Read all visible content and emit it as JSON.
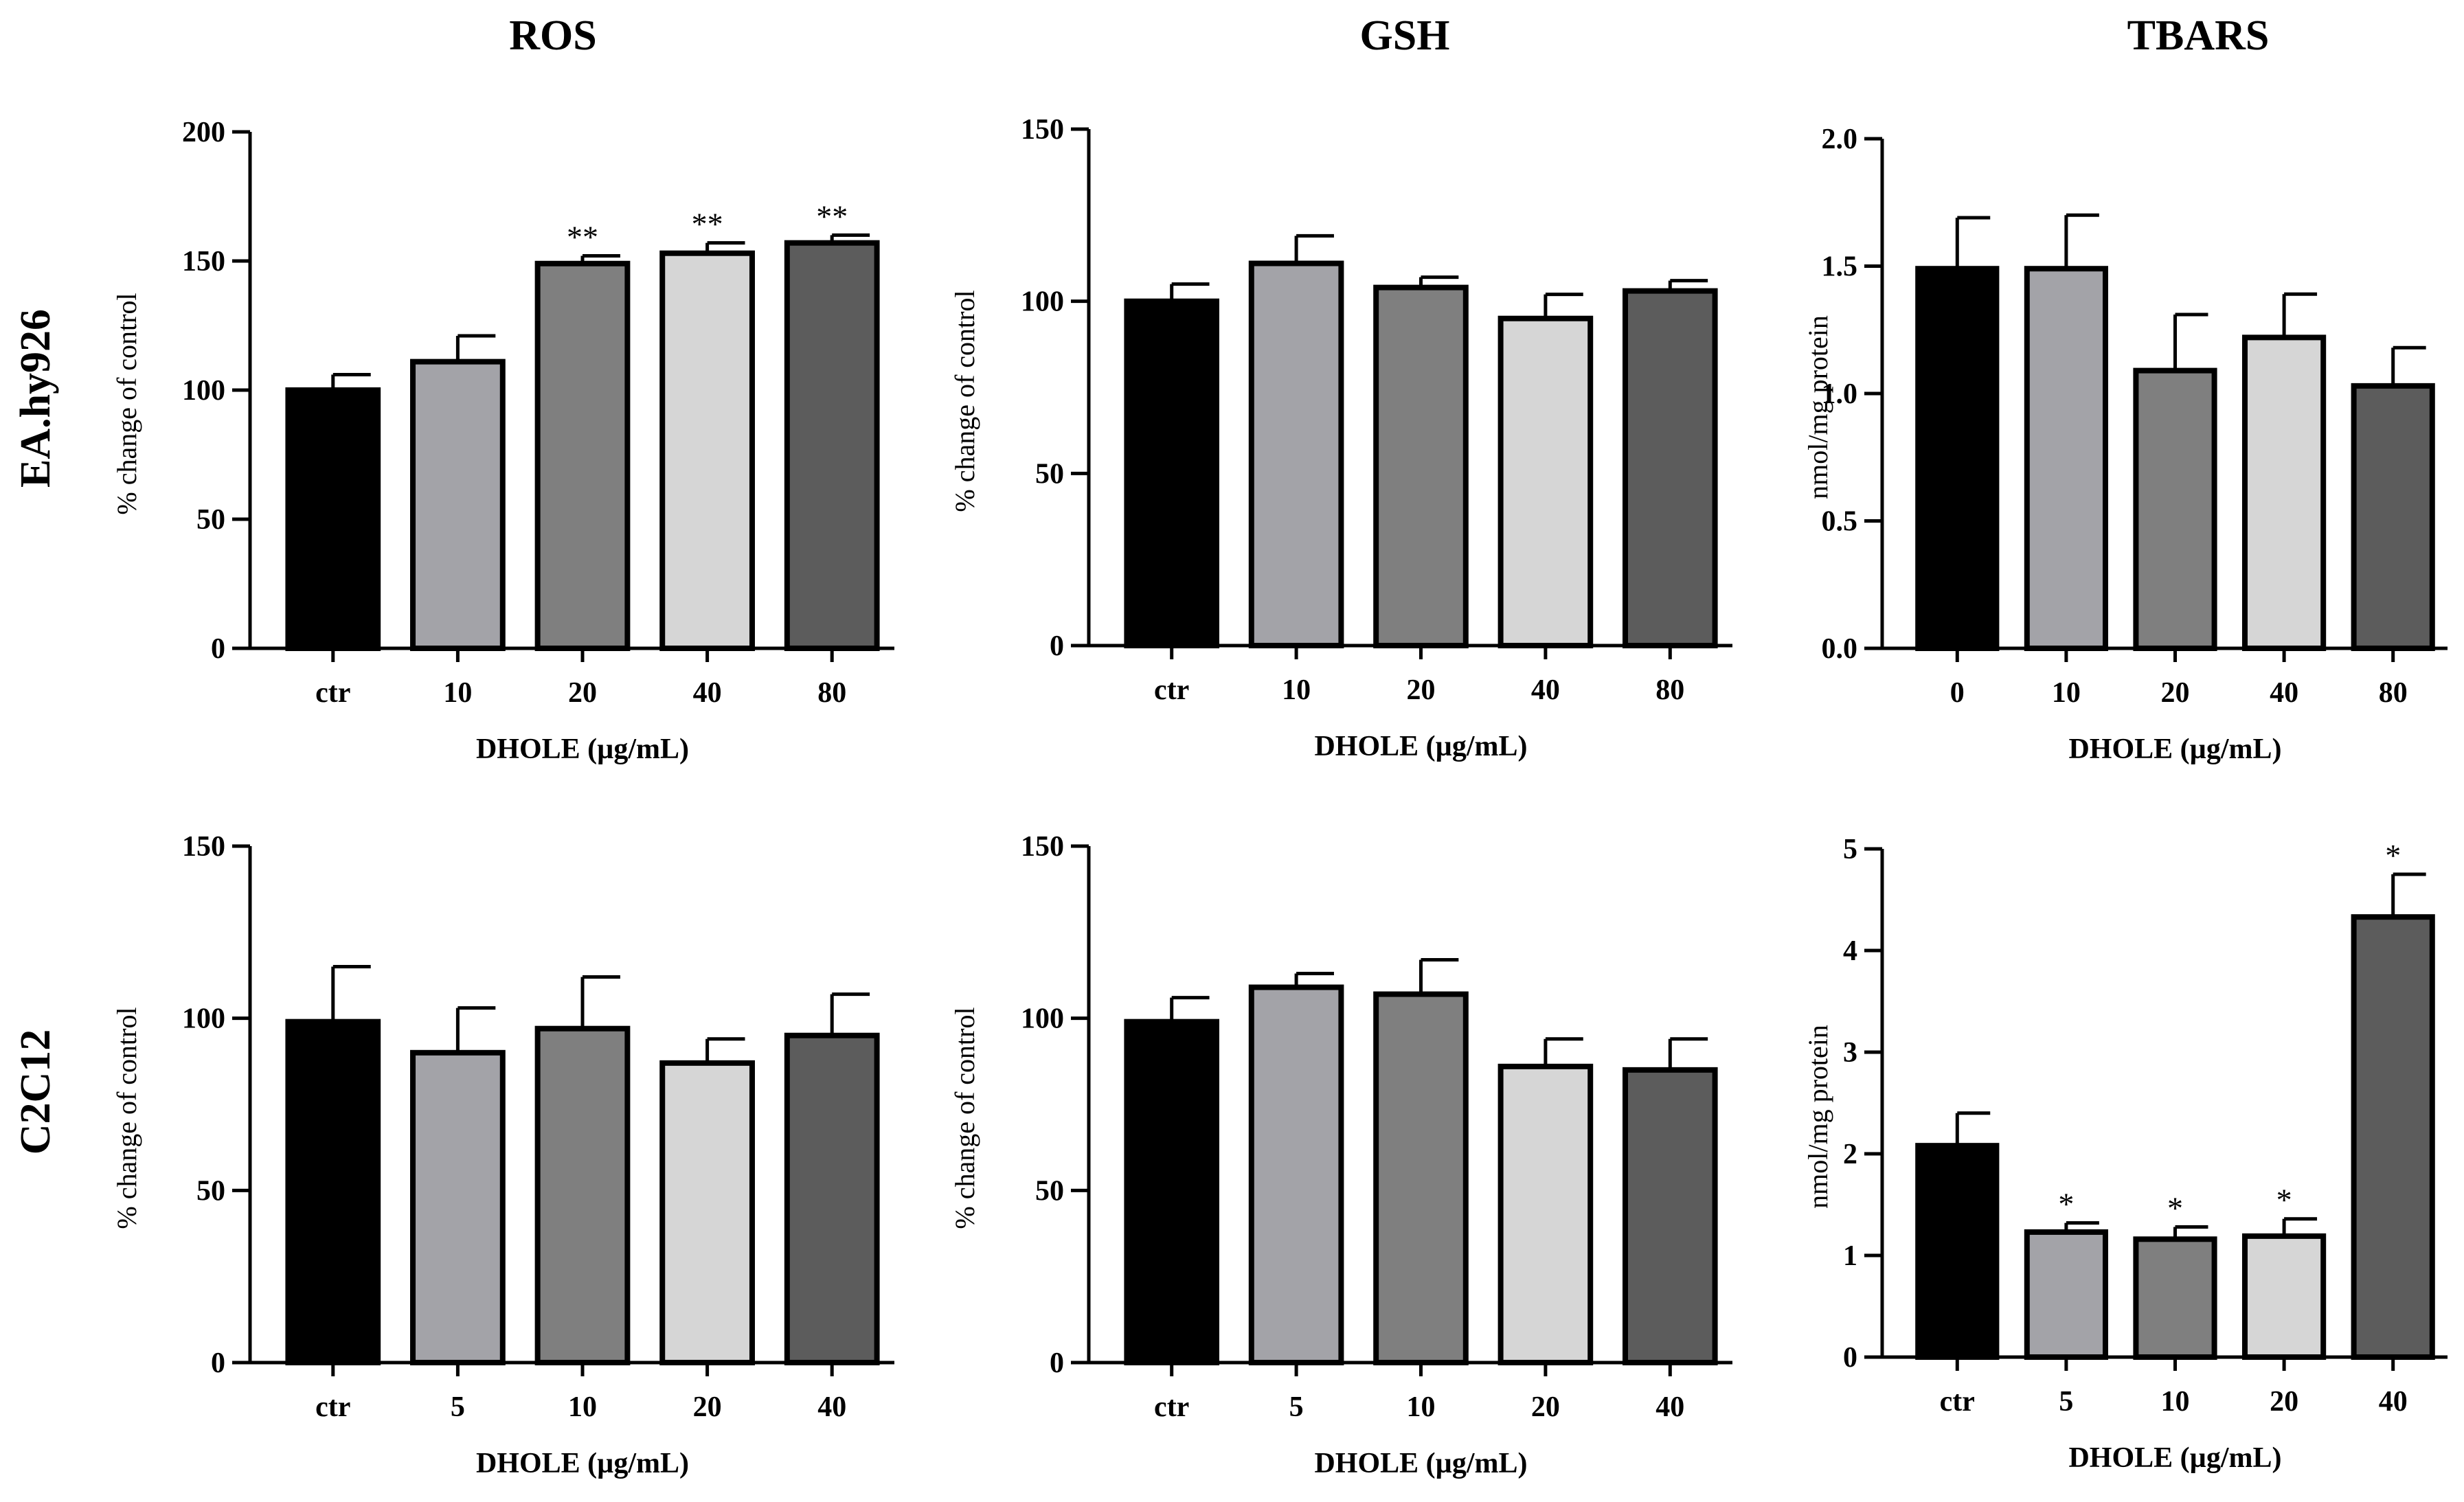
{
  "column_titles": [
    "ROS",
    "GSH",
    "TBARS"
  ],
  "row_labels": [
    "EA.hy926",
    "C2C12"
  ],
  "bar_colors": [
    "#000000",
    "#a3a3a8",
    "#7f7f7f",
    "#d6d6d6",
    "#5c5c5c"
  ],
  "chart_data": [
    {
      "type": "bar",
      "panel": "EA.hy926-ROS",
      "categories": [
        "ctr",
        "10",
        "20",
        "40",
        "80"
      ],
      "values": [
        100,
        111,
        149,
        153,
        157
      ],
      "errors": [
        6,
        10,
        3,
        4,
        3
      ],
      "annotations": [
        "",
        "",
        "**",
        "**",
        "**"
      ],
      "ylabel": "% change of control",
      "xlabel": "DHOLE (µg/mL)",
      "ylim": [
        0,
        200
      ],
      "yticks": [
        "0",
        "50",
        "100",
        "150",
        "200"
      ]
    },
    {
      "type": "bar",
      "panel": "EA.hy926-GSH",
      "categories": [
        "ctr",
        "10",
        "20",
        "40",
        "80"
      ],
      "values": [
        100,
        111,
        104,
        95,
        103
      ],
      "errors": [
        5,
        8,
        3,
        7,
        3
      ],
      "annotations": [
        "",
        "",
        "",
        "",
        ""
      ],
      "ylabel": "% change of control",
      "xlabel": "DHOLE (µg/mL)",
      "ylim": [
        0,
        150
      ],
      "yticks": [
        "0",
        "50",
        "100",
        "150"
      ]
    },
    {
      "type": "bar",
      "panel": "EA.hy926-TBARS",
      "categories": [
        "0",
        "10",
        "20",
        "40",
        "80"
      ],
      "values": [
        1.49,
        1.49,
        1.09,
        1.22,
        1.03
      ],
      "errors": [
        0.2,
        0.21,
        0.22,
        0.17,
        0.15
      ],
      "annotations": [
        "",
        "",
        "",
        "",
        ""
      ],
      "ylabel": "nmol/mg protein",
      "xlabel": "DHOLE (µg/mL)",
      "ylim": [
        0,
        2
      ],
      "yticks": [
        "0.0",
        "0.5",
        "1.0",
        "1.5",
        "2.0"
      ]
    },
    {
      "type": "bar",
      "panel": "C2C12-ROS",
      "categories": [
        "ctr",
        "5",
        "10",
        "20",
        "40"
      ],
      "values": [
        99,
        90,
        97,
        87,
        95
      ],
      "errors": [
        16,
        13,
        15,
        7,
        12
      ],
      "annotations": [
        "",
        "",
        "",
        "",
        ""
      ],
      "ylabel": "% change of control",
      "xlabel": "DHOLE (µg/mL)",
      "ylim": [
        0,
        150
      ],
      "yticks": [
        "0",
        "50",
        "100",
        "150"
      ]
    },
    {
      "type": "bar",
      "panel": "C2C12-GSH",
      "categories": [
        "ctr",
        "5",
        "10",
        "20",
        "40"
      ],
      "values": [
        99,
        109,
        107,
        86,
        85
      ],
      "errors": [
        7,
        4,
        10,
        8,
        9
      ],
      "annotations": [
        "",
        "",
        "",
        "",
        ""
      ],
      "ylabel": "% change of control",
      "xlabel": "DHOLE (µg/mL)",
      "ylim": [
        0,
        150
      ],
      "yticks": [
        "0",
        "50",
        "100",
        "150"
      ]
    },
    {
      "type": "bar",
      "panel": "C2C12-TBARS",
      "categories": [
        "ctr",
        "5",
        "10",
        "20",
        "40"
      ],
      "values": [
        2.08,
        1.23,
        1.16,
        1.19,
        4.33
      ],
      "errors": [
        0.32,
        0.09,
        0.12,
        0.17,
        0.42
      ],
      "annotations": [
        "",
        "*",
        "*",
        "*",
        "*"
      ],
      "ylabel": "nmol/mg protein",
      "xlabel": "DHOLE (µg/mL)",
      "ylim": [
        0,
        5
      ],
      "yticks": [
        "0",
        "1",
        "2",
        "3",
        "4",
        "5"
      ]
    }
  ]
}
